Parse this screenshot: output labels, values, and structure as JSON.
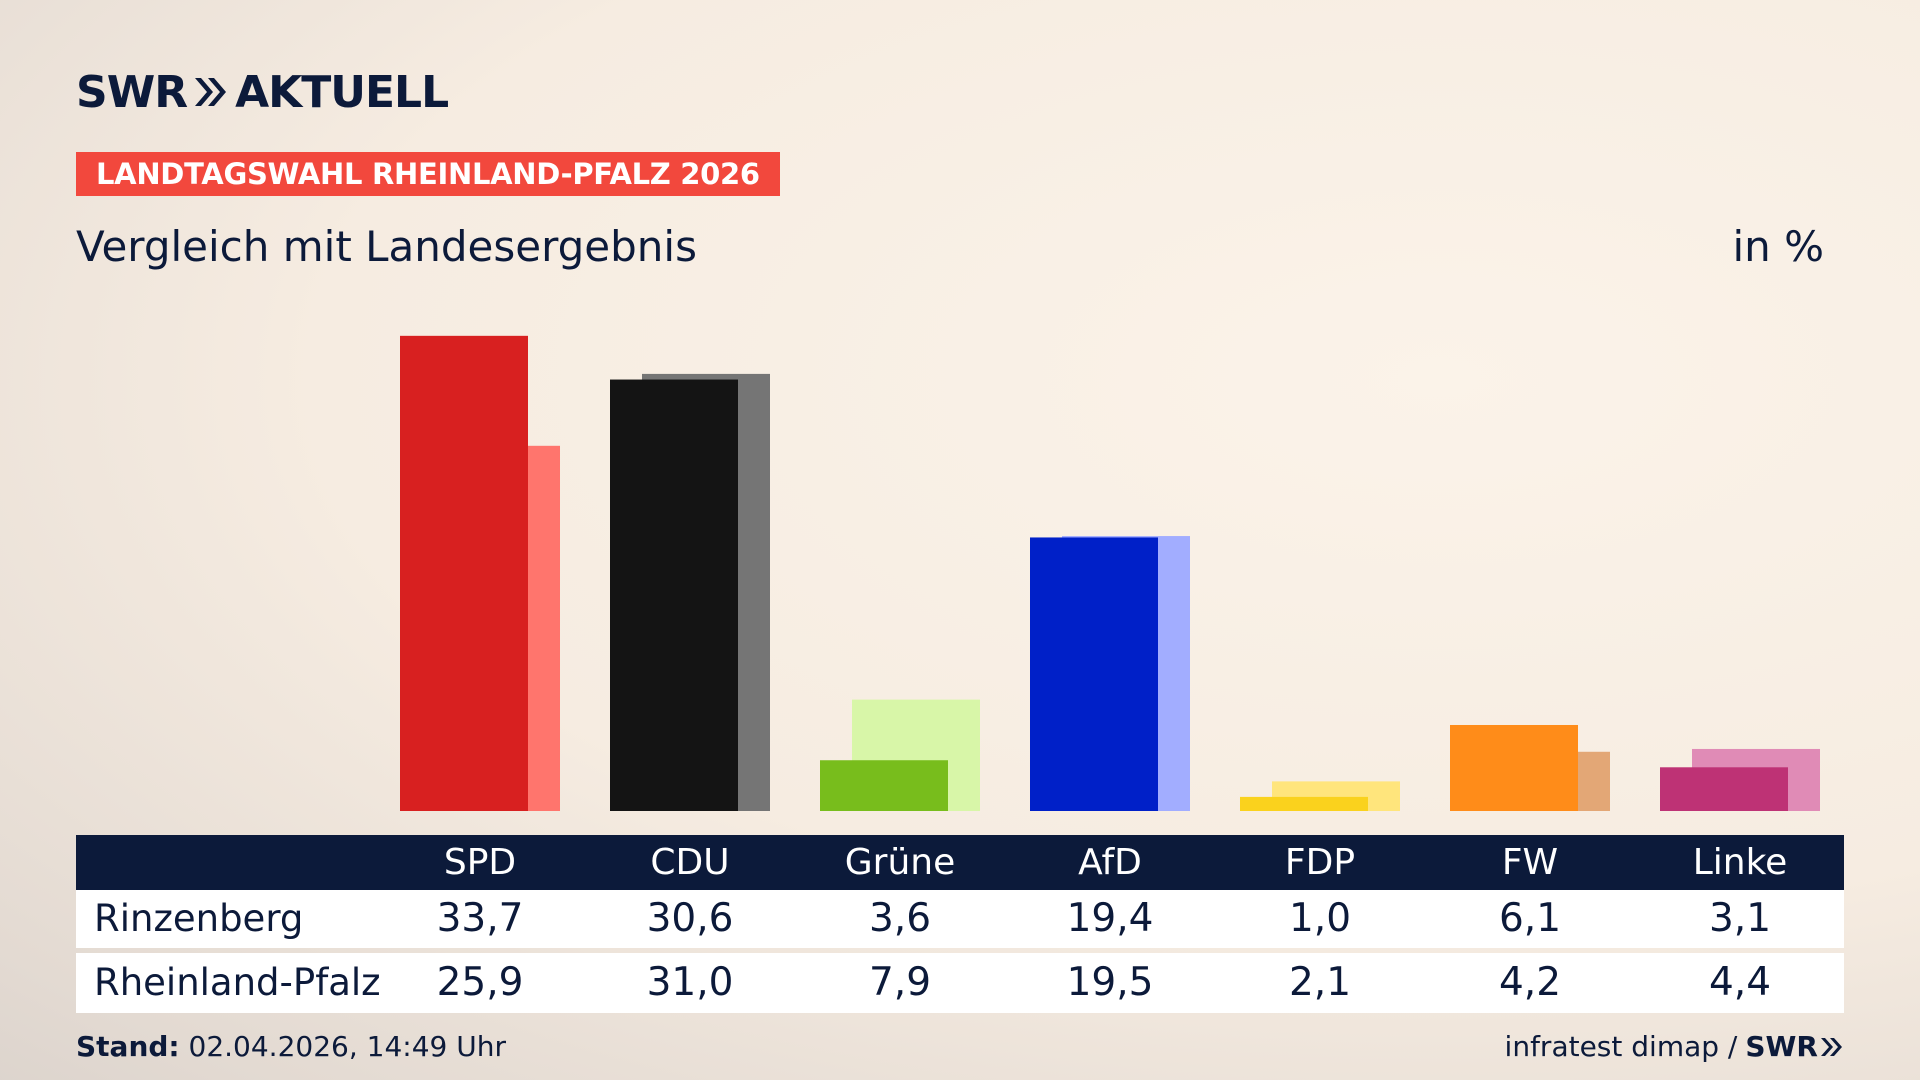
{
  "header": {
    "logo_swr": "SWR",
    "logo_aktuell": "AKTUELL",
    "tag": "LANDTAGSWAHL RHEINLAND-PFALZ 2026",
    "subtitle": "Vergleich mit Landesergebnis",
    "unit": "in %"
  },
  "chart_data": {
    "type": "bar",
    "title": "Vergleich mit Landesergebnis",
    "ylabel": "in %",
    "ylim": [
      0,
      35
    ],
    "grid": false,
    "categories": [
      "SPD",
      "CDU",
      "Grüne",
      "AfD",
      "FDP",
      "FW",
      "Linke"
    ],
    "series": [
      {
        "name": "Rinzenberg",
        "values": [
          33.7,
          30.6,
          3.6,
          19.4,
          1.0,
          6.1,
          3.1
        ]
      },
      {
        "name": "Rheinland-Pfalz",
        "values": [
          25.9,
          31.0,
          7.9,
          19.5,
          2.1,
          4.2,
          4.4
        ]
      }
    ],
    "colors": {
      "Rinzenberg": [
        "#d82020",
        "#141414",
        "#78bd1c",
        "#0020c8",
        "#fad21d",
        "#ff8c19",
        "#be3275"
      ],
      "Rheinland-Pfalz": [
        "#ff756d",
        "#757575",
        "#d8f6a8",
        "#a2adff",
        "#ffe57c",
        "#e3a776",
        "#e08bb6"
      ]
    }
  },
  "table": {
    "rows": [
      {
        "label": "Rinzenberg",
        "values": [
          "33,7",
          "30,6",
          "3,6",
          "19,4",
          "1,0",
          "6,1",
          "3,1"
        ]
      },
      {
        "label": "Rheinland-Pfalz",
        "values": [
          "25,9",
          "31,0",
          "7,9",
          "19,5",
          "2,1",
          "4,2",
          "4,4"
        ]
      }
    ]
  },
  "footer": {
    "stand_label": "Stand:",
    "stand_value": " 02.04.2026, 14:49 Uhr",
    "source": "infratest dimap /",
    "brand": "SWR"
  }
}
